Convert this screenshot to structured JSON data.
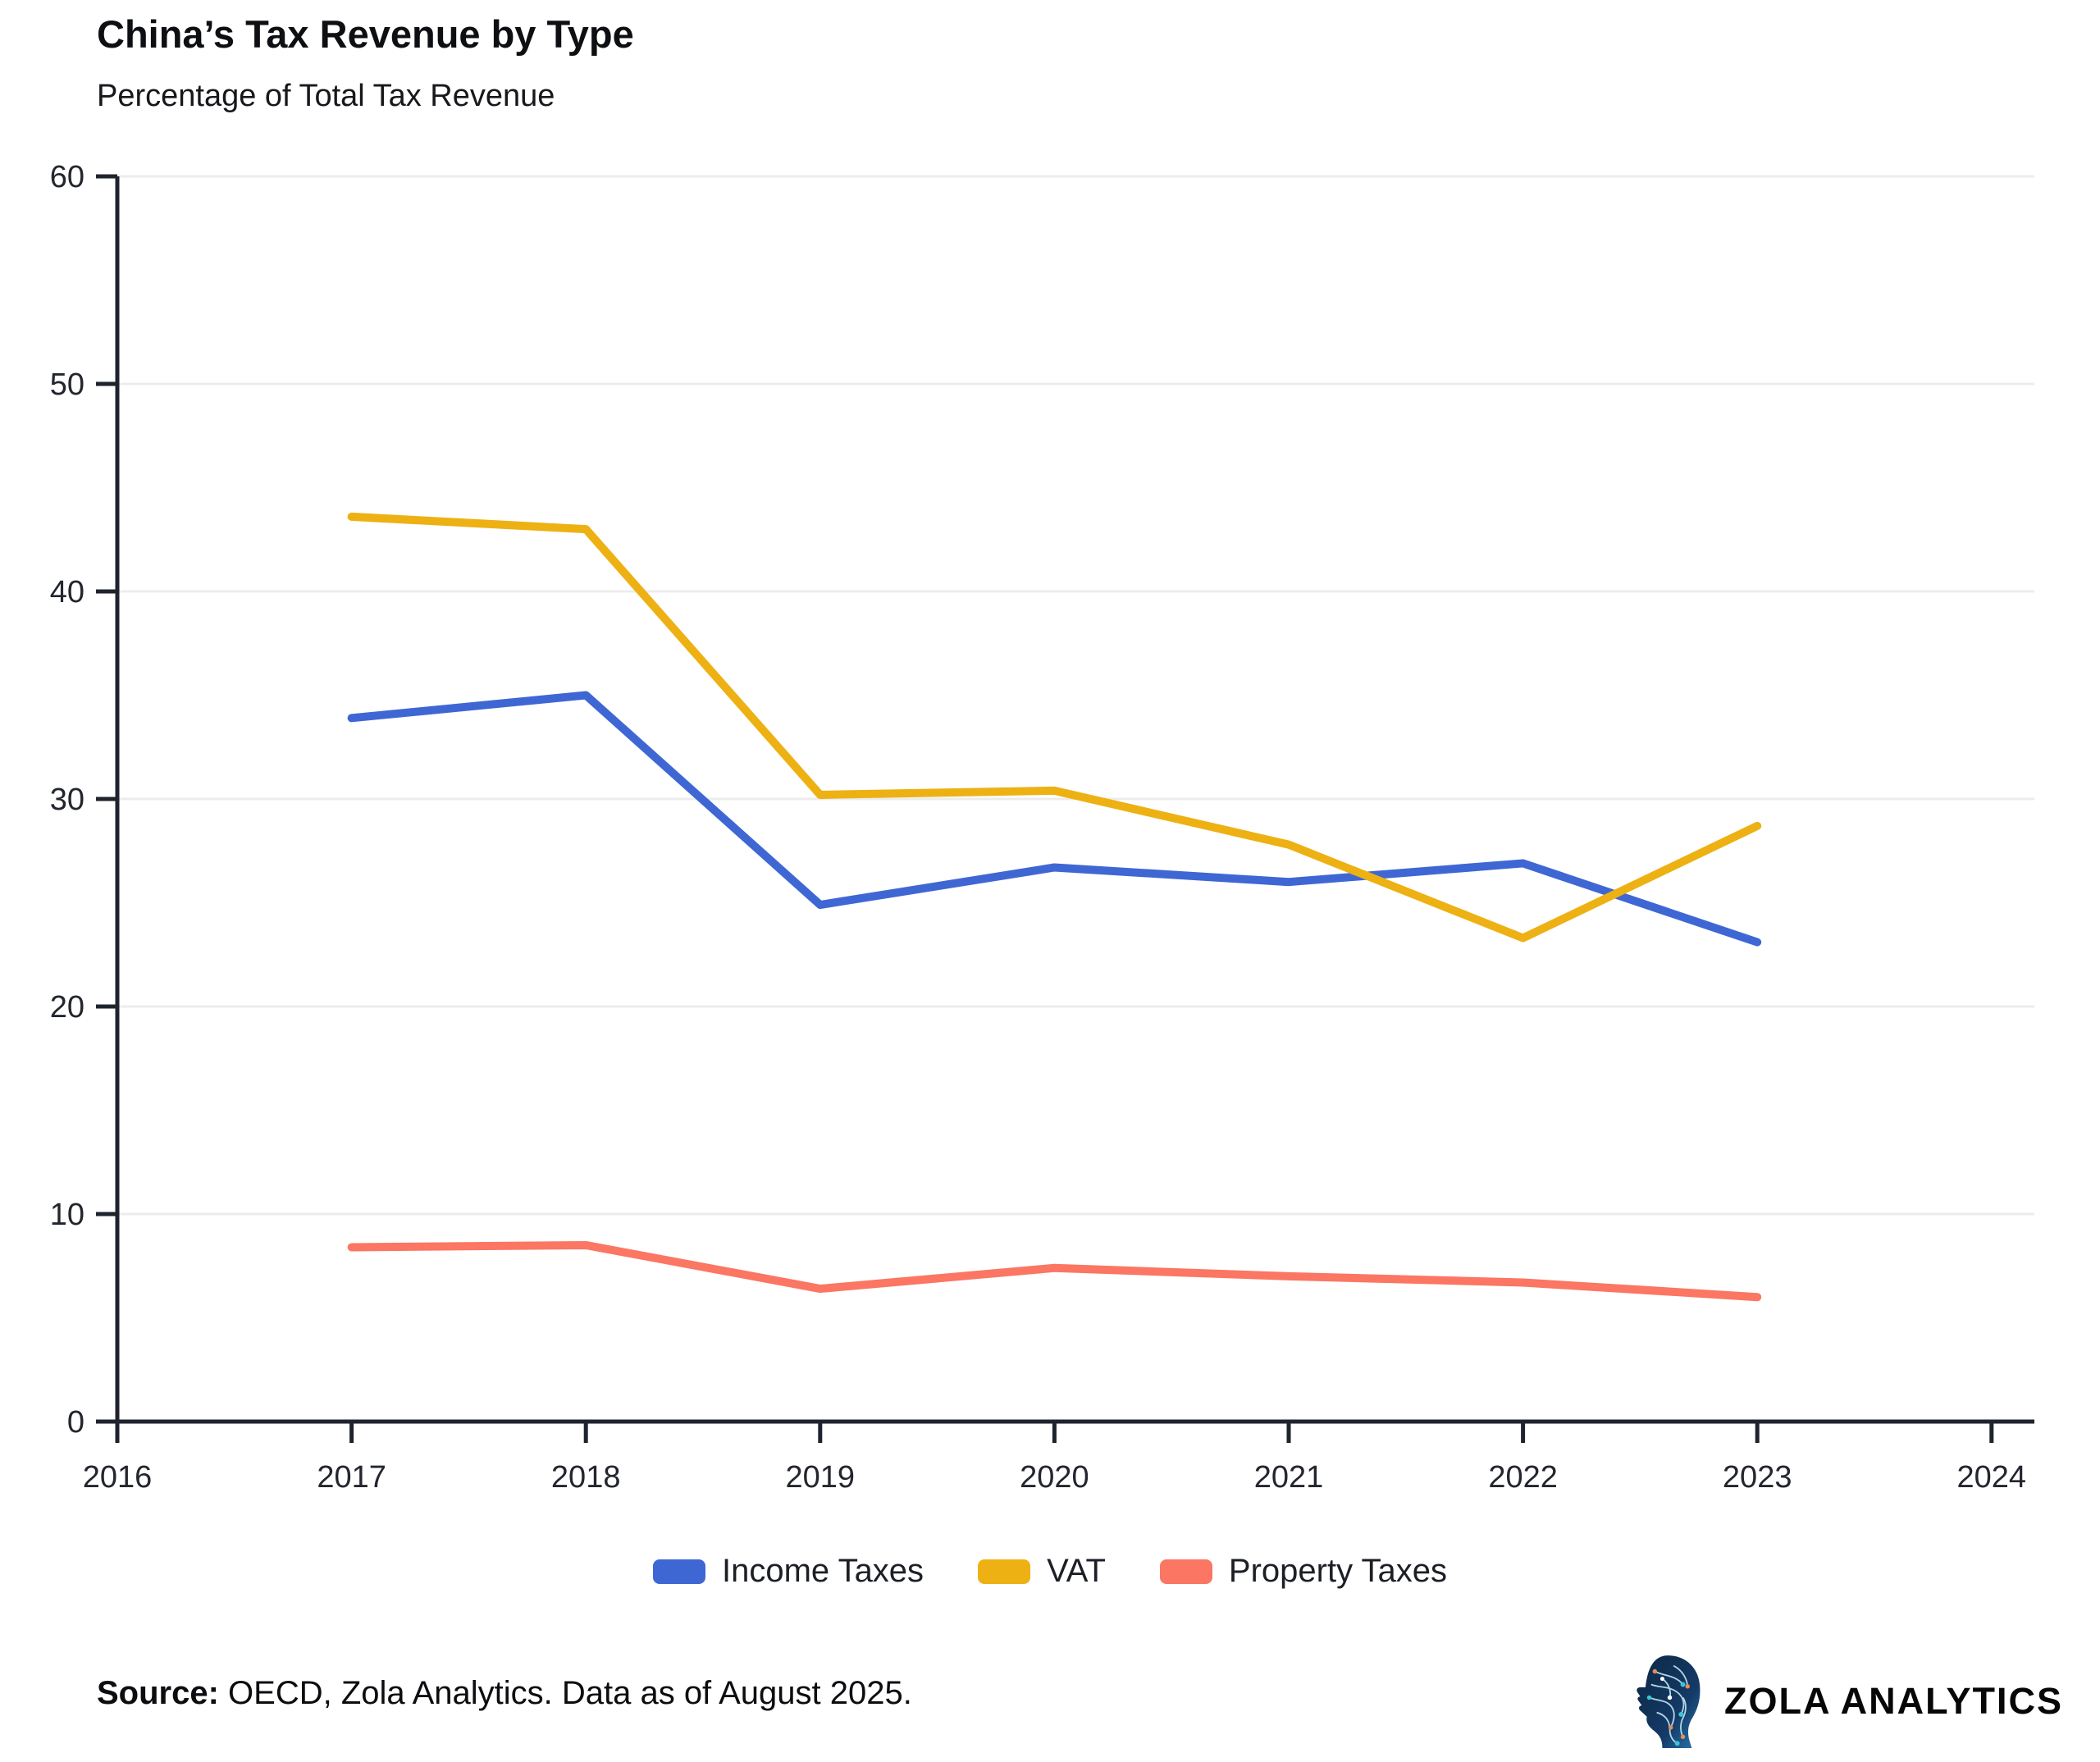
{
  "chart_data": {
    "type": "line",
    "title": "China’s Tax Revenue by Type",
    "subtitle": "Percentage of Total Tax Revenue",
    "x": [
      2017,
      2018,
      2019,
      2020,
      2021,
      2022,
      2023
    ],
    "series": [
      {
        "name": "Income Taxes",
        "color": "#3F67D4",
        "values": [
          33.9,
          35.0,
          24.9,
          26.7,
          26.0,
          26.9,
          23.1
        ]
      },
      {
        "name": "VAT",
        "color": "#EDB113",
        "values": [
          43.6,
          43.0,
          30.2,
          30.4,
          27.8,
          23.3,
          28.7
        ]
      },
      {
        "name": "Property Taxes",
        "color": "#FB7663",
        "values": [
          8.4,
          8.5,
          6.4,
          7.4,
          7.0,
          6.7,
          6.0
        ]
      }
    ],
    "xlim": [
      2016,
      2024
    ],
    "ylim": [
      0,
      60
    ],
    "xticks": [
      2016,
      2017,
      2018,
      2019,
      2020,
      2021,
      2022,
      2023,
      2024
    ],
    "yticks": [
      0,
      10,
      20,
      30,
      40,
      50,
      60
    ],
    "grid": "horizontal",
    "legend_position": "bottom"
  },
  "footer": {
    "source_label": "Source:",
    "source_text": " OECD, Zola Analytics. Data as of August 2025.",
    "brand": "ZOLA ANALYTICS"
  }
}
